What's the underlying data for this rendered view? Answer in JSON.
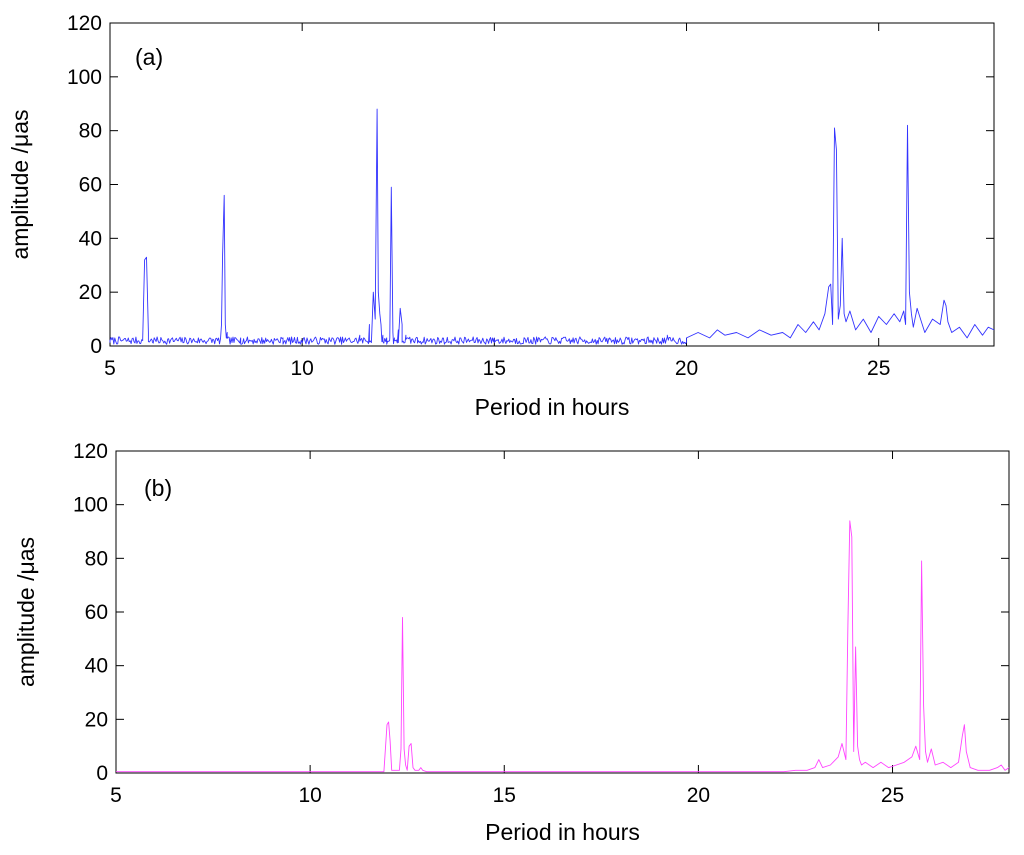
{
  "chart_data": [
    {
      "type": "line",
      "panel_label": "(a)",
      "xlabel": "Period in hours",
      "ylabel": "amplitude /μas",
      "xlim": [
        5,
        28
      ],
      "ylim": [
        0,
        120
      ],
      "xticks": [
        5,
        10,
        15,
        20,
        25
      ],
      "yticks": [
        0,
        20,
        40,
        60,
        80,
        100,
        120
      ],
      "grid": false,
      "series": [
        {
          "color": "#3333ff",
          "baseline": {
            "from": 5,
            "to": 20,
            "amplitude": 2.5
          },
          "x": [
            5.0,
            5.85,
            5.9,
            5.95,
            6.0,
            6.1,
            7.8,
            7.9,
            7.93,
            7.97,
            8.0,
            8.05,
            8.15,
            8.4,
            9.5,
            11.5,
            11.75,
            11.85,
            11.9,
            11.95,
            11.98,
            12.02,
            12.05,
            12.1,
            12.2,
            12.28,
            12.32,
            12.36,
            12.4,
            12.5,
            12.55,
            12.6,
            12.7,
            13.0,
            15.0,
            18.0,
            19.5,
            20.0,
            20.3,
            20.6,
            20.8,
            21.0,
            21.3,
            21.6,
            21.9,
            22.2,
            22.5,
            22.7,
            22.9,
            23.1,
            23.3,
            23.45,
            23.6,
            23.7,
            23.75,
            23.8,
            23.85,
            23.9,
            23.95,
            24.0,
            24.05,
            24.1,
            24.15,
            24.25,
            24.4,
            24.6,
            24.8,
            25.0,
            25.2,
            25.4,
            25.55,
            25.65,
            25.7,
            25.75,
            25.8,
            25.85,
            25.9,
            26.0,
            26.2,
            26.4,
            26.6,
            26.7,
            26.75,
            26.8,
            26.9,
            27.1,
            27.3,
            27.5,
            27.7,
            27.85,
            28.0
          ],
          "values": [
            2,
            2,
            32,
            33,
            5,
            2,
            2,
            8,
            34,
            56,
            8,
            5,
            3,
            3,
            3,
            4,
            8,
            20,
            10,
            88,
            20,
            12,
            8,
            4,
            3,
            3,
            59,
            5,
            3,
            6,
            14,
            8,
            4,
            3,
            3,
            3,
            4,
            3,
            5,
            3,
            6,
            4,
            5,
            3,
            6,
            4,
            5,
            3,
            8,
            5,
            9,
            6,
            12,
            22,
            23,
            8,
            81,
            73,
            10,
            15,
            40,
            12,
            9,
            13,
            6,
            10,
            5,
            11,
            8,
            12,
            9,
            13,
            8,
            82,
            20,
            12,
            7,
            14,
            5,
            10,
            8,
            17,
            15,
            9,
            5,
            7,
            3,
            8,
            4,
            7,
            6
          ]
        }
      ]
    },
    {
      "type": "line",
      "panel_label": "(b)",
      "xlabel": "Period in hours",
      "ylabel": "amplitude /μas",
      "xlim": [
        5,
        28
      ],
      "ylim": [
        0,
        120
      ],
      "xticks": [
        5,
        10,
        15,
        20,
        25
      ],
      "yticks": [
        0,
        20,
        40,
        60,
        80,
        100,
        120
      ],
      "grid": false,
      "series": [
        {
          "color": "#ff44ff",
          "x": [
            5.0,
            11.9,
            11.98,
            12.02,
            12.06,
            12.1,
            12.3,
            12.34,
            12.38,
            12.42,
            12.46,
            12.5,
            12.55,
            12.6,
            12.65,
            12.7,
            12.8,
            12.85,
            12.9,
            13.0,
            22.2,
            22.5,
            22.8,
            23.0,
            23.1,
            23.2,
            23.4,
            23.6,
            23.7,
            23.8,
            23.85,
            23.9,
            23.95,
            24.0,
            24.05,
            24.1,
            24.15,
            24.2,
            24.3,
            24.5,
            24.7,
            24.9,
            25.1,
            25.3,
            25.5,
            25.6,
            25.7,
            25.75,
            25.8,
            25.85,
            25.9,
            26.0,
            26.1,
            26.3,
            26.5,
            26.7,
            26.8,
            26.85,
            26.9,
            27.0,
            27.2,
            27.5,
            27.7,
            27.8,
            27.9,
            28.0
          ],
          "values": [
            0.5,
            0.5,
            18,
            19,
            12,
            1,
            1,
            9,
            58,
            9,
            3,
            1,
            10,
            11,
            2,
            1,
            1,
            2,
            1,
            0.5,
            0.5,
            1,
            1,
            2,
            5,
            2,
            3,
            6,
            11,
            5,
            55,
            94,
            88,
            8,
            47,
            10,
            5,
            3,
            4,
            2,
            4,
            2,
            3,
            4,
            6,
            10,
            5,
            79,
            25,
            8,
            4,
            9,
            3,
            4,
            2,
            4,
            14,
            18,
            8,
            2,
            1,
            1,
            2,
            3,
            1,
            2
          ]
        }
      ]
    }
  ]
}
